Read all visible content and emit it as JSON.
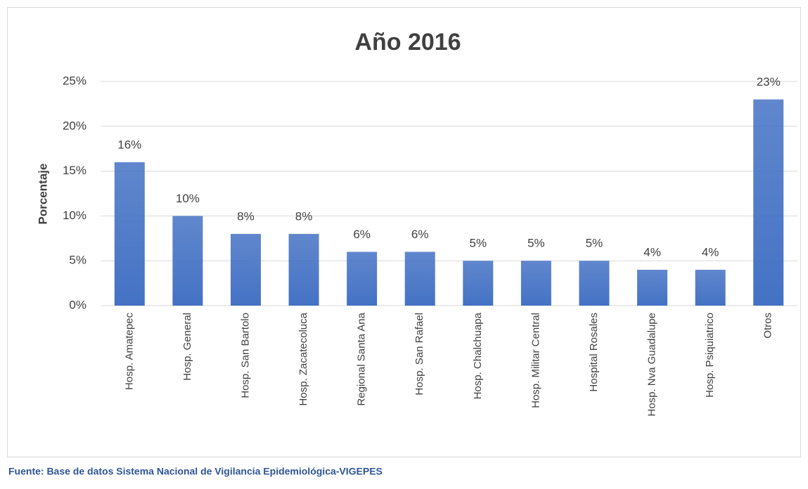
{
  "chart_data": {
    "type": "bar",
    "title": "Año 2016",
    "y_label": "Porcentaje",
    "categories": [
      "Hosp. Amatepec",
      "Hosp. General",
      "Hosp. San Bartolo",
      "Hosp. Zacatecoluca",
      "Regional Santa Ana",
      "Hosp. San Rafael",
      "Hosp. Chalchuapa",
      "Hosp. Militar Central",
      "Hospital Rosales",
      "Hosp. Nva Guadalupe",
      "Hosp. Psiquiatrico",
      "Otros"
    ],
    "values": [
      16,
      10,
      8,
      8,
      6,
      6,
      5,
      5,
      5,
      4,
      4,
      23
    ],
    "value_labels": [
      "16%",
      "10%",
      "8%",
      "8%",
      "6%",
      "6%",
      "5%",
      "5%",
      "5%",
      "4%",
      "4%",
      "23%"
    ],
    "color": "#4472c4",
    "ylim": [
      0,
      25
    ],
    "yticks": [
      {
        "value": 0,
        "label": "0%"
      },
      {
        "value": 5,
        "label": "5%"
      },
      {
        "value": 10,
        "label": "10%"
      },
      {
        "value": 15,
        "label": "15%"
      },
      {
        "value": 20,
        "label": "20%"
      },
      {
        "value": 25,
        "label": "25%"
      }
    ],
    "grid": true,
    "source": "Fuente: Base de datos Sistema Nacional de Vigilancia Epidemiológica-VIGEPES"
  }
}
